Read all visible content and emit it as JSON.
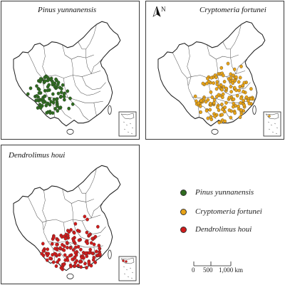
{
  "panels": [
    {
      "id": "panel-pinus",
      "title": "Pinus yunnanensis",
      "color": "#2e6b1f",
      "region": "southwest"
    },
    {
      "id": "panel-cryptomeria",
      "title": "Cryptomeria fortunei",
      "color": "#e8a317",
      "region": "southeast",
      "north_arrow": "N"
    },
    {
      "id": "panel-dendrolimus",
      "title": "Dendrolimus houi",
      "color": "#d11a1a",
      "region": "south"
    }
  ],
  "legend": [
    {
      "label": "Pinus yunnanensis",
      "color": "#2e6b1f"
    },
    {
      "label": "Cryptomeria fortunei",
      "color": "#e8a317"
    },
    {
      "label": "Dendrolimus houi",
      "color": "#d11a1a"
    }
  ],
  "scale_bar": {
    "zero": "0",
    "mid": "500",
    "end": "1,000 km"
  }
}
